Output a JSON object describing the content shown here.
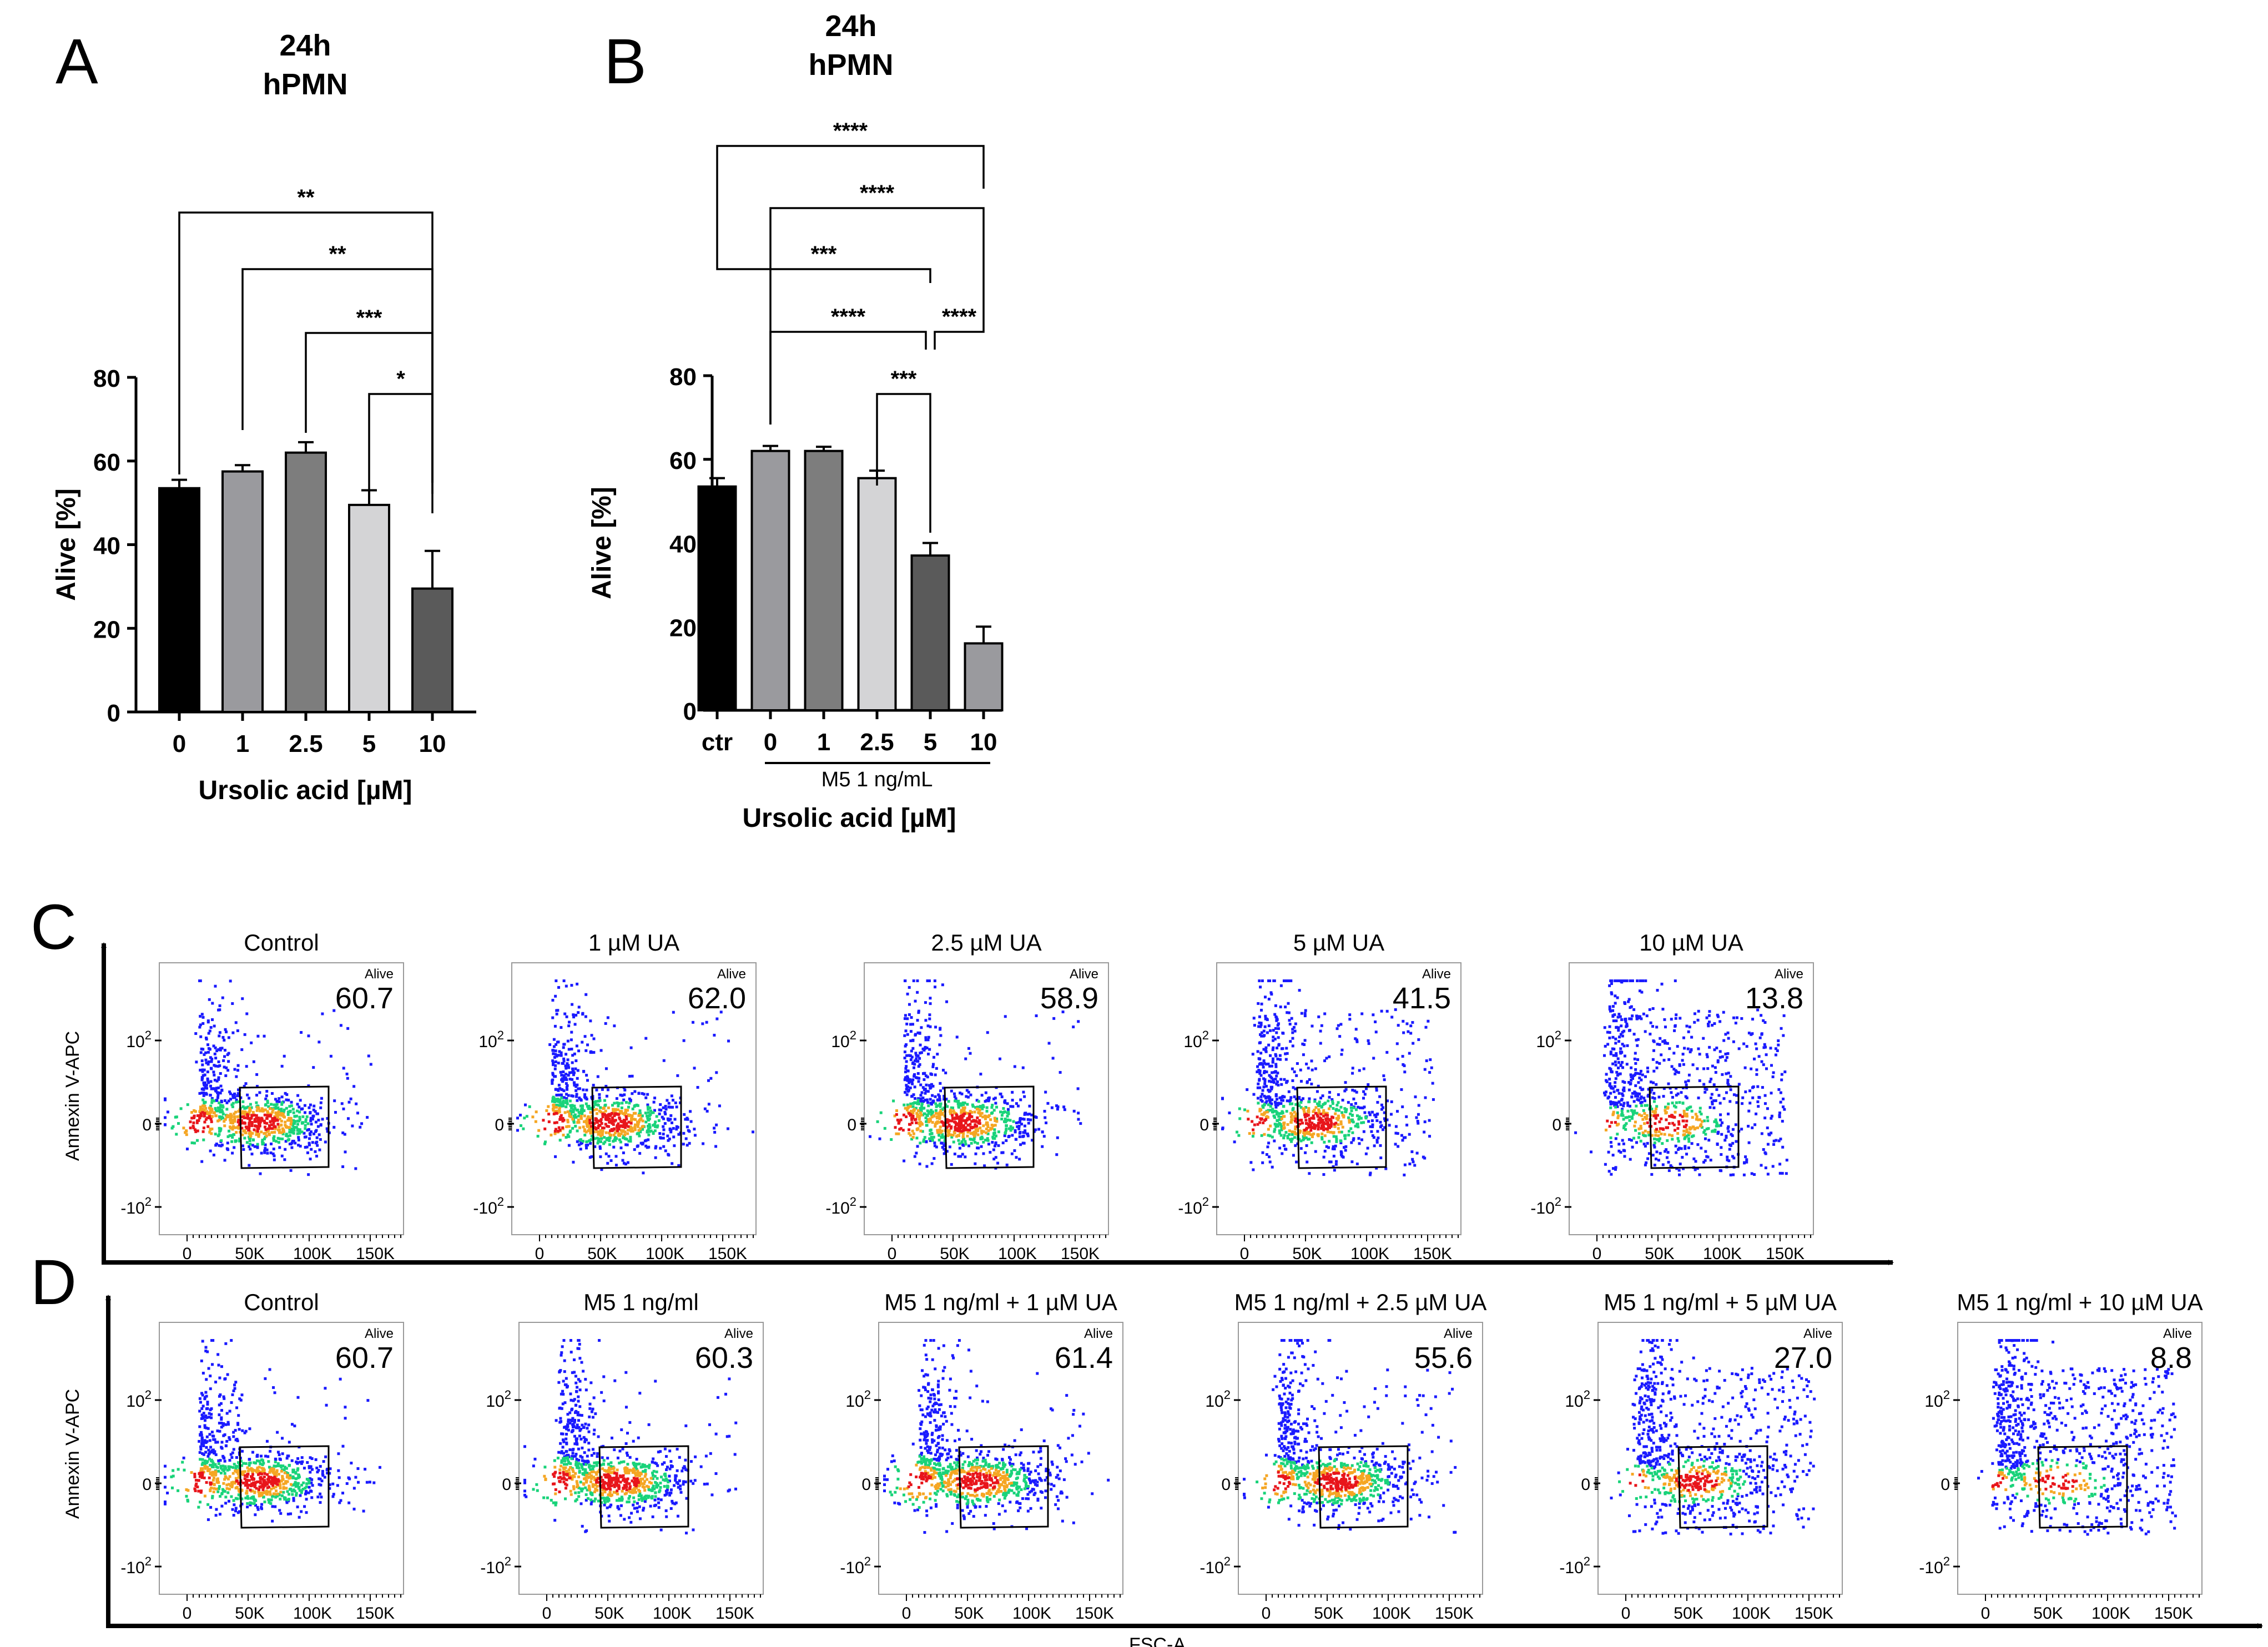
{
  "panel_letters": {
    "A": "A",
    "B": "B",
    "C": "C",
    "D": "D"
  },
  "colors": {
    "black": "#000000",
    "density_low": "#1a1aff",
    "density_mid": "#19d37a",
    "density_high": "#f5a623",
    "density_peak": "#e8151b"
  },
  "flow_axes": {
    "y_label": "Annexin V-APC",
    "x_label": "FSC-A",
    "y_ticks": [
      {
        "base": "10",
        "exp": "2"
      },
      {
        "base": "0",
        "exp": ""
      },
      {
        "base": "-10",
        "exp": "2"
      }
    ],
    "x_ticks": [
      "0",
      "50K",
      "100K",
      "150K"
    ],
    "gate_label": "Alive"
  },
  "chart_data": [
    {
      "id": "A",
      "type": "bar",
      "title": [
        "24h",
        "hPMN"
      ],
      "xlabel": "Ursolic acid [µM]",
      "ylabel": "Alive [%]",
      "ylim": [
        0,
        80
      ],
      "yticks": [
        0,
        20,
        40,
        60,
        80
      ],
      "categories": [
        "0",
        "1",
        "2.5",
        "5",
        "10"
      ],
      "values": [
        53.5,
        57.5,
        62,
        49.5,
        29.5
      ],
      "errors": [
        2,
        1.5,
        2.5,
        3.5,
        9
      ],
      "colors": [
        "#000000",
        "#9a9a9e",
        "#7d7d7d",
        "#d4d4d6",
        "#5a5a5a"
      ],
      "significance": [
        {
          "from": 0,
          "to": 4,
          "label": "**"
        },
        {
          "from": 1,
          "to": 4,
          "label": "**"
        },
        {
          "from": 2,
          "to": 4,
          "label": "***"
        },
        {
          "from": 3,
          "to": 4,
          "label": "*"
        }
      ]
    },
    {
      "id": "B",
      "type": "bar",
      "title": [
        "24h",
        "hPMN"
      ],
      "xlabel": "Ursolic acid [µM]",
      "ylabel": "Alive [%]",
      "ylim": [
        0,
        80
      ],
      "yticks": [
        0,
        20,
        40,
        60,
        80
      ],
      "categories": [
        "ctr",
        "0",
        "1",
        "2.5",
        "5",
        "10"
      ],
      "values": [
        53.5,
        62,
        62,
        55.5,
        37,
        16
      ],
      "errors": [
        2,
        1.2,
        1,
        1.8,
        3,
        4
      ],
      "colors": [
        "#000000",
        "#9a9a9e",
        "#7d7d7d",
        "#d4d4d6",
        "#5a5a5a",
        "#9a9a9e"
      ],
      "group_label": "M5 1 ng/mL",
      "significance": [
        {
          "from": 0,
          "to": 5,
          "label": "****"
        },
        {
          "from": 1,
          "to": 5,
          "label": "****"
        },
        {
          "from": 0,
          "to": 4,
          "label": "***"
        },
        {
          "from": 1,
          "to": 4,
          "label": "****"
        },
        {
          "from": 4,
          "to": 5,
          "label": "****"
        },
        {
          "from": 3,
          "to": 4,
          "label": "***"
        }
      ]
    },
    {
      "id": "C",
      "type": "scatter",
      "plots": [
        {
          "title": "Control",
          "alive": "60.7"
        },
        {
          "title": "1 µM UA",
          "alive": "62.0"
        },
        {
          "title": "2.5 µM UA",
          "alive": "58.9"
        },
        {
          "title": "5 µM UA",
          "alive": "41.5"
        },
        {
          "title": "10 µM UA",
          "alive": "13.8"
        }
      ]
    },
    {
      "id": "D",
      "type": "scatter",
      "plots": [
        {
          "title": "Control",
          "alive": "60.7"
        },
        {
          "title": "M5 1 ng/ml",
          "alive": "60.3"
        },
        {
          "title": "M5 1 ng/ml + 1 µM UA",
          "alive": "61.4"
        },
        {
          "title": "M5 1 ng/ml + 2.5 µM UA",
          "alive": "55.6"
        },
        {
          "title": "M5 1 ng/ml + 5 µM UA",
          "alive": "27.0"
        },
        {
          "title": "M5 1 ng/ml + 10 µM UA",
          "alive": "8.8"
        }
      ]
    }
  ]
}
